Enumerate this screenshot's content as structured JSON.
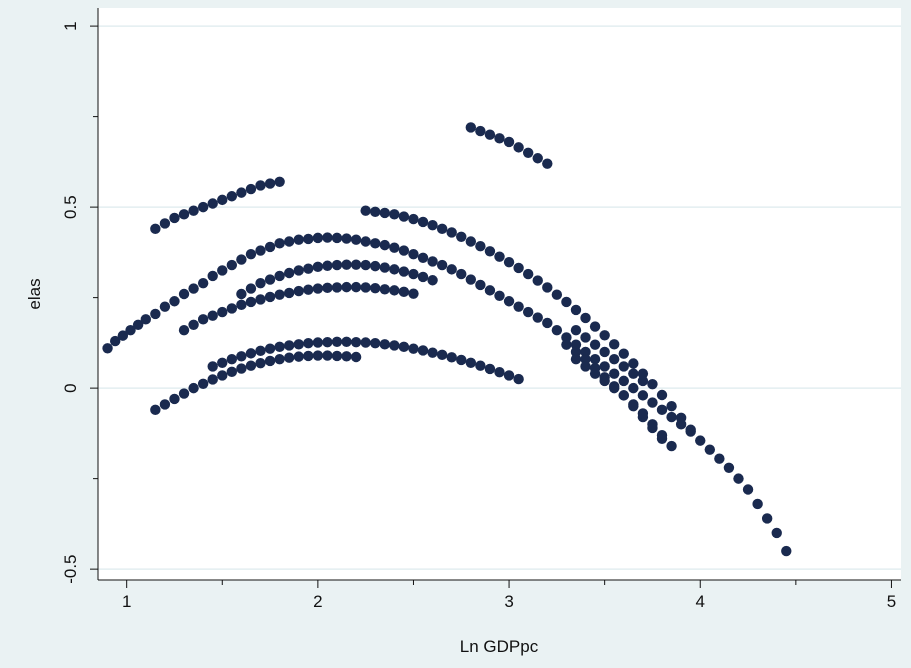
{
  "chart_data": {
    "type": "scatter",
    "title": "",
    "xlabel": "Ln GDPpc",
    "ylabel": "elas",
    "xlim": [
      0.85,
      5.05
    ],
    "ylim": [
      -0.53,
      1.05
    ],
    "xticks": [
      1,
      2,
      3,
      4,
      5
    ],
    "xtick_labels": [
      "1",
      "2",
      "3",
      "4",
      "5"
    ],
    "yticks": [
      -0.5,
      0,
      0.5,
      1
    ],
    "ytick_labels": [
      "-0.5",
      "0",
      "0.5",
      "1"
    ],
    "grid": "horizontal",
    "legend": "none",
    "colors": {
      "marker": "#1a2a4f",
      "background": "#eaf2f3",
      "plot_background": "#ffffff",
      "grid": "#e3eef0"
    },
    "series": [
      {
        "x": [
          0.9,
          0.94,
          0.98,
          1.02,
          1.06,
          1.1,
          1.15,
          1.2,
          1.25,
          1.3,
          1.35,
          1.4,
          1.45,
          1.5,
          1.55,
          1.6,
          1.65,
          1.7,
          1.75,
          1.8,
          1.85,
          1.9,
          1.95,
          2.0,
          2.05,
          2.1,
          2.15,
          2.2,
          2.25,
          2.3,
          2.35,
          2.4,
          2.45,
          2.5,
          2.55,
          2.6,
          2.65,
          2.7,
          2.75,
          2.8,
          2.85,
          2.9,
          2.95,
          3.0,
          3.05,
          3.1,
          3.15,
          3.2,
          3.25,
          3.3,
          3.35,
          3.4,
          3.45,
          3.5,
          3.55,
          3.6,
          3.65,
          3.7,
          3.75,
          3.8,
          3.85,
          3.9,
          3.95,
          4.0,
          4.05,
          4.1,
          4.15,
          4.2,
          4.25,
          4.3,
          4.35,
          4.4,
          4.45
        ],
        "y": [
          0.11,
          0.13,
          0.145,
          0.16,
          0.175,
          0.19,
          0.205,
          0.225,
          0.24,
          0.26,
          0.275,
          0.29,
          0.31,
          0.325,
          0.34,
          0.355,
          0.37,
          0.38,
          0.39,
          0.4,
          0.405,
          0.41,
          0.412,
          0.415,
          0.416,
          0.415,
          0.413,
          0.41,
          0.405,
          0.4,
          0.395,
          0.388,
          0.38,
          0.37,
          0.36,
          0.35,
          0.34,
          0.328,
          0.315,
          0.3,
          0.285,
          0.27,
          0.255,
          0.24,
          0.225,
          0.21,
          0.195,
          0.18,
          0.16,
          0.14,
          0.12,
          0.1,
          0.08,
          0.06,
          0.04,
          0.02,
          0.0,
          -0.02,
          -0.04,
          -0.06,
          -0.08,
          -0.1,
          -0.12,
          -0.145,
          -0.17,
          -0.195,
          -0.22,
          -0.25,
          -0.28,
          -0.32,
          -0.36,
          -0.4,
          -0.45
        ]
      },
      {
        "x": [
          1.15,
          1.2,
          1.25,
          1.3,
          1.35,
          1.4,
          1.45,
          1.5,
          1.55,
          1.6,
          1.65,
          1.7,
          1.75,
          1.8
        ],
        "y": [
          0.44,
          0.455,
          0.47,
          0.48,
          0.49,
          0.5,
          0.51,
          0.52,
          0.53,
          0.54,
          0.55,
          0.56,
          0.565,
          0.57
        ]
      },
      {
        "x": [
          2.8,
          2.85,
          2.9,
          2.95,
          3.0,
          3.05,
          3.1,
          3.15,
          3.2
        ],
        "y": [
          0.72,
          0.71,
          0.7,
          0.69,
          0.68,
          0.665,
          0.65,
          0.635,
          0.62
        ]
      },
      {
        "x": [
          2.25,
          2.3,
          2.35,
          2.4,
          2.45,
          2.5,
          2.55,
          2.6,
          2.65,
          2.7,
          2.75,
          2.8,
          2.85,
          2.9,
          2.95,
          3.0,
          3.05,
          3.1,
          3.15,
          3.2,
          3.25,
          3.3,
          3.35,
          3.4,
          3.45,
          3.5,
          3.55,
          3.6,
          3.65,
          3.7,
          3.75,
          3.8,
          3.85,
          3.9,
          3.95
        ],
        "y": [
          0.49,
          0.487,
          0.484,
          0.48,
          0.474,
          0.467,
          0.459,
          0.45,
          0.44,
          0.43,
          0.418,
          0.405,
          0.392,
          0.378,
          0.363,
          0.348,
          0.332,
          0.315,
          0.297,
          0.278,
          0.258,
          0.238,
          0.216,
          0.194,
          0.17,
          0.146,
          0.121,
          0.095,
          0.068,
          0.04,
          0.011,
          -0.019,
          -0.05,
          -0.082,
          -0.115
        ]
      },
      {
        "x": [
          1.6,
          1.65,
          1.7,
          1.75,
          1.8,
          1.85,
          1.9,
          1.95,
          2.0,
          2.05,
          2.1,
          2.15,
          2.2,
          2.25,
          2.3,
          2.35,
          2.4,
          2.45,
          2.5,
          2.55,
          2.6
        ],
        "y": [
          0.26,
          0.275,
          0.29,
          0.3,
          0.31,
          0.318,
          0.325,
          0.33,
          0.335,
          0.338,
          0.34,
          0.341,
          0.341,
          0.34,
          0.337,
          0.333,
          0.328,
          0.322,
          0.315,
          0.307,
          0.298
        ]
      },
      {
        "x": [
          1.3,
          1.35,
          1.4,
          1.45,
          1.5,
          1.55,
          1.6,
          1.65,
          1.7,
          1.75,
          1.8,
          1.85,
          1.9,
          1.95,
          2.0,
          2.05,
          2.1,
          2.15,
          2.2,
          2.25,
          2.3,
          2.35,
          2.4,
          2.45,
          2.5
        ],
        "y": [
          0.16,
          0.175,
          0.19,
          0.2,
          0.21,
          0.22,
          0.23,
          0.238,
          0.245,
          0.252,
          0.258,
          0.263,
          0.268,
          0.272,
          0.275,
          0.277,
          0.278,
          0.279,
          0.279,
          0.278,
          0.276,
          0.273,
          0.27,
          0.266,
          0.261
        ]
      },
      {
        "x": [
          1.45,
          1.5,
          1.55,
          1.6,
          1.65,
          1.7,
          1.75,
          1.8,
          1.85,
          1.9,
          1.95,
          2.0,
          2.05,
          2.1,
          2.15,
          2.2,
          2.25,
          2.3,
          2.35,
          2.4,
          2.45,
          2.5,
          2.55,
          2.6,
          2.65,
          2.7,
          2.75,
          2.8,
          2.85,
          2.9,
          2.95,
          3.0,
          3.05
        ],
        "y": [
          0.06,
          0.07,
          0.08,
          0.088,
          0.096,
          0.103,
          0.109,
          0.114,
          0.118,
          0.121,
          0.124,
          0.126,
          0.127,
          0.128,
          0.128,
          0.127,
          0.126,
          0.124,
          0.121,
          0.118,
          0.114,
          0.109,
          0.104,
          0.098,
          0.092,
          0.085,
          0.078,
          0.07,
          0.062,
          0.053,
          0.044,
          0.035,
          0.025
        ]
      },
      {
        "x": [
          1.15,
          1.2,
          1.25,
          1.3,
          1.35,
          1.4,
          1.45,
          1.5,
          1.55,
          1.6,
          1.65,
          1.7,
          1.75,
          1.8,
          1.85,
          1.9,
          1.95,
          2.0,
          2.05,
          2.1,
          2.15,
          2.2
        ],
        "y": [
          -0.06,
          -0.045,
          -0.03,
          -0.015,
          0.0,
          0.012,
          0.024,
          0.035,
          0.045,
          0.054,
          0.062,
          0.069,
          0.075,
          0.08,
          0.084,
          0.087,
          0.089,
          0.09,
          0.09,
          0.089,
          0.088,
          0.086
        ]
      },
      {
        "x": [
          3.3,
          3.35,
          3.4,
          3.45,
          3.5,
          3.55,
          3.6,
          3.65,
          3.7,
          3.75,
          3.8
        ],
        "y": [
          0.12,
          0.1,
          0.08,
          0.055,
          0.03,
          0.005,
          -0.02,
          -0.05,
          -0.08,
          -0.11,
          -0.14
        ]
      },
      {
        "x": [
          3.35,
          3.4,
          3.45,
          3.5,
          3.55,
          3.6,
          3.65,
          3.7,
          3.75,
          3.8,
          3.85
        ],
        "y": [
          0.08,
          0.06,
          0.04,
          0.02,
          0.0,
          -0.02,
          -0.045,
          -0.07,
          -0.1,
          -0.13,
          -0.16
        ]
      },
      {
        "x": [
          3.35,
          3.4,
          3.45,
          3.5,
          3.55,
          3.6,
          3.65,
          3.7
        ],
        "y": [
          0.16,
          0.14,
          0.12,
          0.1,
          0.08,
          0.06,
          0.04,
          0.02
        ]
      }
    ]
  }
}
